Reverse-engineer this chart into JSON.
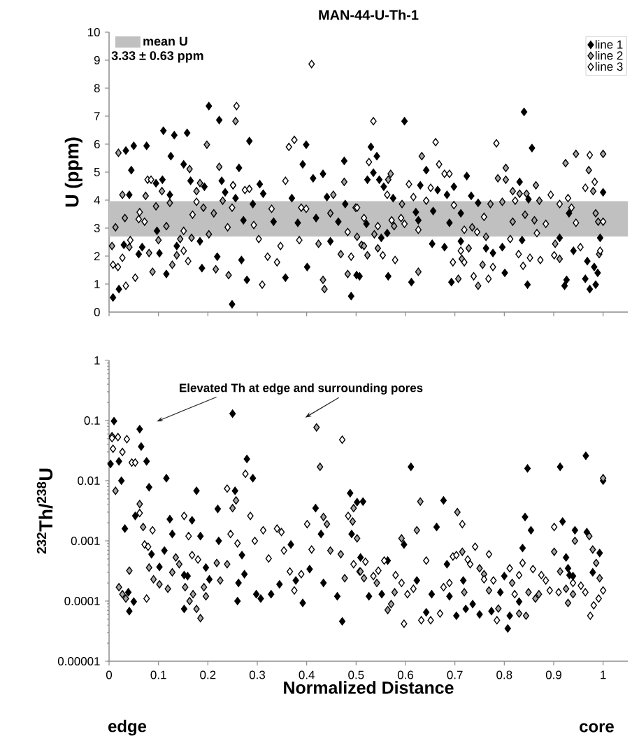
{
  "chart_data": [
    {
      "type": "scatter",
      "title": "MAN-44-U-Th-1",
      "ylabel": "U (ppm)",
      "xlim": [
        0,
        1.05
      ],
      "ylim": [
        0,
        10
      ],
      "xticks": [
        0,
        0.1,
        0.2,
        0.3,
        0.4,
        0.5,
        0.6,
        0.7,
        0.8,
        0.9,
        1
      ],
      "yticks": [
        0,
        1,
        2,
        3,
        4,
        5,
        6,
        7,
        8,
        9,
        10
      ],
      "tick_labels": "y",
      "marker": "diamond",
      "legend": "top right",
      "bands": [
        {
          "axis": "y",
          "from": 2.7,
          "to": 3.96,
          "label": "mean U",
          "color": "#c0c0c0"
        }
      ],
      "annotations": [
        "3.33 ± 0.63 ppm"
      ],
      "series": [
        {
          "name": "line 1",
          "color": "#000000",
          "x": [
            0.008,
            0.02,
            0.034,
            0.05,
            0.076,
            0.045,
            0.041,
            0.03,
            0.06,
            0.067,
            0.095,
            0.108,
            0.097,
            0.102,
            0.11,
            0.132,
            0.158,
            0.125,
            0.151,
            0.123,
            0.165,
            0.193,
            0.184,
            0.188,
            0.116,
            0.137,
            0.202,
            0.223,
            0.228,
            0.235,
            0.256,
            0.263,
            0.272,
            0.284,
            0.305,
            0.312,
            0.291,
            0.219,
            0.268,
            0.279,
            0.249,
            0.333,
            0.37,
            0.399,
            0.392,
            0.413,
            0.433,
            0.441,
            0.382,
            0.401,
            0.357,
            0.419,
            0.448,
            0.476,
            0.478,
            0.464,
            0.49,
            0.501,
            0.53,
            0.542,
            0.535,
            0.523,
            0.547,
            0.556,
            0.598,
            0.575,
            0.84,
            0.856,
            0.521,
            0.551,
            0.563,
            0.507,
            0.565,
            0.612,
            0.642,
            0.63,
            0.665,
            0.684,
            0.698,
            0.724,
            0.621,
            0.626,
            0.656,
            0.689,
            0.712,
            0.733,
            0.747,
            0.654,
            0.679,
            0.712,
            0.763,
            0.777,
            0.796,
            0.693,
            0.801,
            0.831,
            0.849,
            0.836,
            0.847,
            0.931,
            0.912,
            0.94,
            0.922,
            0.926,
            1.0,
            0.994,
            0.968,
            0.982,
            0.989,
            0.964,
            0.973,
            0.985
          ],
          "values": [
            0.52,
            0.82,
            5.77,
            5.94,
            5.94,
            5.07,
            4.19,
            2.4,
            2.07,
            2.32,
            4.6,
            4.73,
            2.9,
            2.1,
            6.48,
            6.32,
            6.4,
            5.57,
            5.28,
            4.19,
            4.69,
            4.48,
            2.53,
            1.57,
            1.36,
            2.36,
            7.36,
            6.86,
            4.69,
            4.28,
            4.07,
            5.15,
            3.28,
            6.11,
            4.57,
            4.23,
            3.86,
            1.98,
            1.86,
            1.15,
            0.28,
            3.23,
            4.07,
            5.98,
            5.28,
            4.78,
            4.94,
            4.11,
            3.19,
            1.61,
            1.23,
            3.36,
            2.53,
            5.4,
            3.86,
            3.23,
            0.57,
            1.32,
            5.9,
            5.57,
            4.98,
            4.73,
            4.73,
            4.48,
            6.82,
            4.07,
            7.15,
            5.86,
            3.15,
            2.65,
            2.82,
            1.28,
            1.28,
            1.07,
            5.07,
            4.53,
            4.36,
            4.19,
            4.48,
            4.86,
            3.57,
            3.28,
            3.61,
            3.19,
            3.53,
            4.15,
            3.9,
            2.44,
            2.32,
            2.53,
            2.28,
            2.11,
            2.32,
            1.07,
            1.4,
            4.65,
            4.03,
            2.57,
            0.98,
            3.53,
            2.65,
            2.19,
            0.94,
            1.15,
            4.28,
            2.65,
            1.82,
            1.61,
            1.4,
            1.19,
            0.82,
            0.98
          ]
        },
        {
          "name": "line 2",
          "color": "#a6a6a6",
          "x": [
            0.019,
            0.013,
            0.006,
            0.027,
            0.032,
            0.041,
            0.074,
            0.095,
            0.081,
            0.088,
            0.107,
            0.116,
            0.1,
            0.123,
            0.128,
            0.137,
            0.163,
            0.177,
            0.184,
            0.191,
            0.167,
            0.144,
            0.198,
            0.202,
            0.216,
            0.223,
            0.23,
            0.251,
            0.256,
            0.242,
            0.212,
            0.448,
            0.454,
            0.476,
            0.469,
            0.433,
            0.436,
            0.424,
            0.511,
            0.483,
            0.502,
            0.57,
            0.565,
            0.593,
            0.633,
            0.537,
            0.516,
            0.523,
            0.544,
            0.577,
            0.626,
            0.707,
            0.728,
            0.714,
            0.756,
            0.747,
            0.735,
            0.763,
            0.772,
            0.796,
            0.803,
            0.787,
            0.803,
            0.817,
            0.831,
            0.845,
            0.864,
            0.871,
            0.842,
            0.861,
            0.817,
            0.903,
            0.912,
            0.924,
            0.945,
            0.971,
            1.0,
            0.98,
            0.985,
            0.992,
            0.99
          ],
          "values": [
            5.69,
            3.03,
            2.36,
            4.19,
            3.36,
            2.32,
            4.15,
            3.78,
            2.11,
            1.44,
            4.32,
            3.07,
            2.57,
            3.9,
            1.69,
            2.03,
            5.11,
            4.32,
            4.61,
            3.73,
            2.65,
            2.61,
            5.98,
            2.78,
            1.53,
            5.19,
            3.98,
            4.53,
            6.82,
            1.32,
            3.53,
            3.53,
            4.19,
            4.65,
            2.07,
            1.15,
            0.82,
            2.44,
            2.4,
            1.36,
            2.69,
            4.94,
            4.73,
            3.86,
            5.57,
            2.78,
            2.36,
            2.03,
            2.28,
            3.07,
            1.44,
            1.19,
            2.28,
            1.9,
            1.69,
            0.94,
            3.03,
            2.69,
            3.86,
            3.94,
            5.15,
            4.78,
            4.73,
            4.32,
            4.23,
            4.23,
            4.53,
            3.98,
            3.48,
            3.28,
            3.23,
            2.44,
            1.9,
            5.32,
            5.65,
            5.07,
            5.65,
            4.32,
            3.53,
            2.07,
            3.23
          ]
        },
        {
          "name": "line 3",
          "color": "#ffffff",
          "x": [
            0.008,
            0.018,
            0.027,
            0.034,
            0.053,
            0.043,
            0.06,
            0.062,
            0.072,
            0.078,
            0.085,
            0.151,
            0.16,
            0.151,
            0.169,
            0.177,
            0.24,
            0.249,
            0.258,
            0.251,
            0.275,
            0.284,
            0.293,
            0.303,
            0.31,
            0.321,
            0.329,
            0.34,
            0.347,
            0.357,
            0.364,
            0.375,
            0.385,
            0.389,
            0.399,
            0.41,
            0.49,
            0.483,
            0.499,
            0.535,
            0.526,
            0.563,
            0.502,
            0.516,
            0.544,
            0.572,
            0.591,
            0.598,
            0.554,
            0.579,
            0.607,
            0.616,
            0.642,
            0.626,
            0.661,
            0.668,
            0.679,
            0.689,
            0.651,
            0.698,
            0.719,
            0.712,
            0.696,
            0.719,
            0.738,
            0.768,
            0.777,
            0.745,
            0.759,
            0.784,
            0.822,
            0.812,
            0.829,
            0.838,
            0.852,
            0.873,
            0.866,
            0.884,
            0.894,
            0.912,
            0.929,
            0.936,
            0.945,
            0.954,
            0.901,
            0.973,
            0.983,
            0.964,
            1.0,
            0.994
          ],
          "values": [
            1.69,
            1.61,
            1.94,
            0.94,
            1.23,
            2.57,
            3.32,
            3.57,
            3.23,
            4.73,
            4.73,
            2.9,
            1.82,
            2.19,
            3.48,
            3.94,
            3.03,
            3.73,
            7.36,
            4.53,
            4.36,
            4.4,
            3.11,
            2.61,
            0.98,
            1.98,
            3.69,
            1.78,
            2.36,
            4.69,
            5.9,
            6.15,
            2.57,
            3.73,
            3.69,
            8.86,
            1.98,
            2.86,
            3.73,
            6.82,
            5.36,
            4.19,
            3.73,
            3.36,
            3.07,
            3.28,
            3.36,
            3.15,
            2.03,
            1.86,
            4.57,
            4.11,
            3.98,
            2.94,
            6.07,
            5.28,
            4.94,
            4.94,
            4.44,
            3.82,
            2.94,
            2.19,
            1.78,
            1.78,
            1.28,
            1.19,
            1.61,
            2.86,
            3.4,
            6.03,
            3.98,
            2.61,
            2.07,
            1.65,
            1.94,
            1.86,
            2.82,
            3.15,
            4.19,
            3.86,
            4.07,
            3.73,
            3.19,
            2.32,
            2.03,
            5.61,
            4.65,
            4.44,
            3.23,
            2.19
          ]
        }
      ]
    },
    {
      "type": "scatter",
      "xlabel": "Normalized Distance",
      "ylabel": "$^{232}$Th/$^{238}$U",
      "xlim": [
        0,
        1.05
      ],
      "ylim": [
        1e-05,
        1
      ],
      "log": "y",
      "marker": "diamond",
      "xticks": [
        0,
        0.1,
        0.2,
        0.3,
        0.4,
        0.5,
        0.6,
        0.7,
        0.8,
        0.9,
        1
      ],
      "yticks": [
        {
          "value": 1e-05,
          "label": "0.00001"
        },
        {
          "value": 0.0001,
          "label": "0.0001"
        },
        {
          "value": 0.001,
          "label": "0.001"
        },
        {
          "value": 0.01,
          "label": "0.01"
        },
        {
          "value": 0.1,
          "label": "0.1"
        },
        {
          "value": 1,
          "label": "1"
        }
      ],
      "annotations": [
        "Elevated Th at edge and surrounding pores",
        "edge",
        "core"
      ],
      "series": [
        {
          "color": "#000000",
          "x": [
            0.01,
            0.062,
            0.065,
            0.076,
            0.003,
            0.02,
            0.025,
            0.081,
            0.116,
            0.25,
            0.279,
            0.291,
            0.177,
            0.22,
            0.032,
            0.053,
            0.123,
            0.168,
            0.128,
            0.185,
            0.222,
            0.255,
            0.112,
            0.086,
            0.102,
            0.152,
            0.159,
            0.196,
            0.203,
            0.269,
            0.274,
            0.262,
            0.26,
            0.298,
            0.307,
            0.328,
            0.345,
            0.368,
            0.378,
            0.392,
            0.406,
            0.418,
            0.429,
            0.434,
            0.462,
            0.472,
            0.488,
            0.502,
            0.491,
            0.041,
            0.05,
            0.039,
            0.152,
            0.611,
            0.677,
            0.663,
            0.597,
            0.847,
            0.913,
            0.965,
            1.0,
            0.842,
            0.854,
            0.918,
            0.943,
            0.967,
            0.837,
            0.993,
            0.925,
            0.929,
            0.939,
            0.979,
            0.509,
            0.514,
            0.564,
            0.526,
            0.552,
            0.623,
            0.653,
            0.642,
            0.684,
            0.689,
            0.703,
            0.717,
            0.722,
            0.736,
            0.75,
            0.774,
            0.792,
            0.8,
            0.807,
            0.811,
            0.83,
            0.932
          ],
          "values": [
            0.098,
            0.072,
            0.037,
            0.021,
            0.019,
            0.021,
            0.01,
            0.0078,
            0.011,
            0.13,
            0.023,
            0.011,
            0.0068,
            0.0034,
            0.0016,
            0.0026,
            0.0023,
            0.0022,
            0.0013,
            0.0012,
            0.001,
            0.0068,
            0.00069,
            0.0006,
            0.00037,
            0.00027,
            0.00026,
            0.00036,
            0.00023,
            0.00058,
            0.00028,
            0.0002,
            0.0001,
            0.00013,
            0.00011,
            0.00013,
            0.00019,
            0.00087,
            0.00022,
            9.3e-05,
            0.00034,
            0.0035,
            0.0013,
            0.0002,
            0.00012,
            4.6e-05,
            0.0062,
            0.0044,
            0.0013,
            6.8e-05,
            9.8e-05,
            0.00014,
            7.4e-05,
            0.017,
            0.0047,
            0.0017,
            0.00087,
            0.016,
            0.017,
            0.026,
            0.01,
            0.0025,
            0.0015,
            0.0021,
            0.0015,
            0.0014,
            0.00076,
            0.00063,
            0.00053,
            0.00035,
            0.00026,
            0.0003,
            0.00053,
            0.0045,
            0.00047,
            0.00012,
            0.00013,
            0.00022,
            0.00013,
            6.5e-05,
            0.00041,
            0.00012,
            5.7e-05,
            0.00022,
            7.4e-05,
            8.9e-05,
            6e-05,
            6.8e-05,
            0.00014,
            0.00026,
            3.5e-05,
            5.7e-05,
            9.8e-05,
            0.00027
          ]
        },
        {
          "color": "#a6a6a6",
          "x": [
            0.006,
            0.013,
            0.062,
            0.069,
            0.041,
            0.081,
            0.02,
            0.027,
            0.034,
            0.09,
            0.102,
            0.119,
            0.135,
            0.142,
            0.128,
            0.154,
            0.163,
            0.17,
            0.177,
            0.185,
            0.192,
            0.196,
            0.218,
            0.239,
            0.225,
            0.25,
            0.257,
            0.42,
            0.427,
            0.434,
            0.441,
            0.448,
            0.469,
            0.477,
            0.493,
            0.502,
            0.495,
            0.507,
            0.63,
            0.705,
            0.623,
            0.592,
            1.0,
            0.972,
            0.943,
            0.901,
            0.913,
            0.979,
            0.986,
            0.993,
            0.939,
            0.929,
            0.925,
            0.509,
            0.516,
            0.542,
            0.571,
            0.564,
            0.578,
            0.715,
            0.719,
            0.75,
            0.759,
            0.769,
            0.788,
            0.816,
            0.83,
            0.844,
            0.849,
            0.863,
            0.87
          ],
          "values": [
            0.055,
            0.0068,
            0.0041,
            0.0017,
            0.00032,
            0.00036,
            0.00017,
            0.00013,
            0.00011,
            0.00023,
            0.00019,
            0.00016,
            0.00053,
            0.00041,
            0.0003,
            0.00017,
            0.0001,
            0.00013,
            7.4e-05,
            5.2e-05,
            0.00017,
            0.00012,
            0.00043,
            0.00041,
            0.00022,
            0.0035,
            0.0047,
            0.077,
            0.017,
            0.0025,
            0.0019,
            0.00069,
            0.0006,
            0.00024,
            0.0021,
            0.0011,
            0.0035,
            0.00031,
            0.0045,
            0.003,
            0.0015,
            0.0011,
            0.011,
            0.0012,
            0.001,
            0.00066,
            0.00031,
            0.00072,
            0.00043,
            0.00024,
            0.00013,
            9.3e-05,
            0.00016,
            0.00031,
            0.00024,
            0.0002,
            8.9e-05,
            7.1e-05,
            0.00014,
            0.00066,
            0.00014,
            0.00035,
            0.00028,
            0.00015,
            7.5e-05,
            0.0002,
            6.2e-05,
            5.7e-05,
            0.00014,
            0.00011,
            0.00013
          ]
        },
        {
          "color": "#ffffff",
          "x": [
            0.006,
            0.018,
            0.036,
            0.008,
            0.027,
            0.046,
            0.053,
            0.062,
            0.088,
            0.072,
            0.079,
            0.076,
            0.152,
            0.161,
            0.168,
            0.18,
            0.239,
            0.276,
            0.286,
            0.246,
            0.26,
            0.295,
            0.312,
            0.34,
            0.349,
            0.323,
            0.354,
            0.366,
            0.375,
            0.389,
            0.401,
            0.41,
            0.472,
            0.484,
            0.495,
            0.519,
            0.545,
            0.557,
            0.535,
            0.58,
            0.592,
            0.597,
            0.604,
            0.616,
            0.642,
            0.632,
            0.651,
            0.67,
            0.677,
            0.689,
            0.696,
            0.703,
            0.715,
            0.726,
            0.741,
            0.769,
            0.731,
            0.759,
            0.778,
            0.811,
            0.83,
            0.837,
            0.858,
            0.875,
            0.884,
            0.901,
            0.785,
            0.821,
            0.892,
            0.91,
            0.939,
            0.955,
            0.964,
            1.0,
            0.991,
            0.981,
            0.974
          ],
          "values": [
            0.051,
            0.053,
            0.049,
            0.034,
            0.03,
            0.02,
            0.02,
            0.0029,
            0.0015,
            0.00087,
            0.0008,
            0.00011,
            0.0026,
            0.0012,
            0.00058,
            0.00049,
            0.0074,
            0.013,
            0.0026,
            0.0013,
            0.00091,
            0.001,
            0.0015,
            0.0016,
            0.0014,
            0.00051,
            0.00069,
            0.00031,
            0.00015,
            0.00028,
            0.0019,
            0.00072,
            0.048,
            0.0026,
            0.00041,
            0.00045,
            0.00032,
            0.00047,
            0.00026,
            0.00027,
            0.0002,
            4.2e-05,
            0.00013,
            0.00016,
            0.00047,
            4.8e-05,
            4.8e-05,
            6.2e-05,
            0.00017,
            0.0002,
            0.00055,
            0.00058,
            0.0019,
            0.00049,
            0.0008,
            0.0006,
            0.00041,
            0.00023,
            0.00022,
            0.00035,
            0.00027,
            0.00043,
            0.00034,
            0.00027,
            0.00022,
            0.0017,
            4.8e-05,
            0.00013,
            0.00015,
            0.00014,
            0.0002,
            0.00018,
            0.00014,
            0.00015,
            0.00011,
            8.5e-05,
            5.7e-05
          ]
        }
      ]
    }
  ]
}
